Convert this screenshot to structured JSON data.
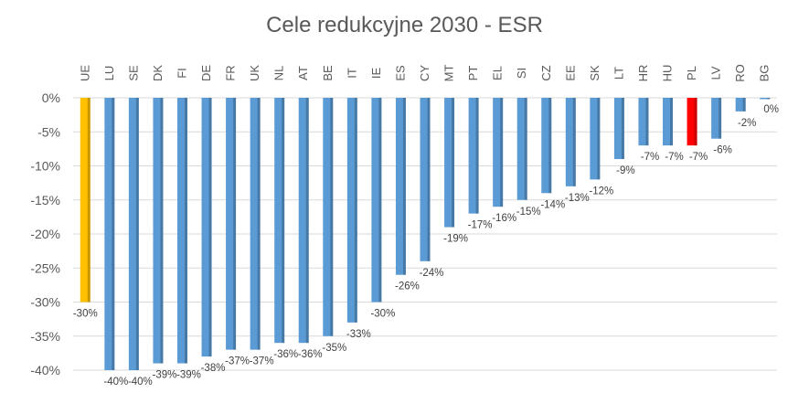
{
  "chart_data": {
    "type": "bar",
    "title": "Cele redukcyjne 2030 - ESR",
    "xlabel": "",
    "ylabel": "",
    "ylim": [
      -40,
      0
    ],
    "yticks": [
      "0%",
      "-5%",
      "-10%",
      "-15%",
      "-20%",
      "-25%",
      "-30%",
      "-35%",
      "-40%"
    ],
    "grid": true,
    "categories": [
      "UE",
      "LU",
      "SE",
      "DK",
      "FI",
      "DE",
      "FR",
      "UK",
      "NL",
      "AT",
      "BE",
      "IT",
      "IE",
      "ES",
      "CY",
      "MT",
      "PT",
      "EL",
      "SI",
      "CZ",
      "EE",
      "SK",
      "LT",
      "HR",
      "HU",
      "PL",
      "LV",
      "RO",
      "BG"
    ],
    "values": [
      -30,
      -40,
      -40,
      -39,
      -39,
      -38,
      -37,
      -37,
      -36,
      -36,
      -35,
      -33,
      -30,
      -26,
      -24,
      -19,
      -17,
      -16,
      -15,
      -14,
      -13,
      -12,
      -9,
      -7,
      -7,
      -7,
      -6,
      -2,
      0
    ],
    "data_labels": [
      "-30%",
      "-40%",
      "-40%",
      "-39%",
      "-39%",
      "-38%",
      "-37%",
      "-37%",
      "-36%",
      "-36%",
      "-35%",
      "-33%",
      "-30%",
      "-26%",
      "-24%",
      "-19%",
      "-17%",
      "-16%",
      "-15%",
      "-14%",
      "-13%",
      "-12%",
      "-9%",
      "-7%",
      "-7%",
      "-7%",
      "-6%",
      "-2%",
      "0%"
    ],
    "colors": {
      "default": "#5B9BD5",
      "UE": "#FFC000",
      "PL": "#FF0000",
      "grid": "#D9D9D9"
    }
  }
}
